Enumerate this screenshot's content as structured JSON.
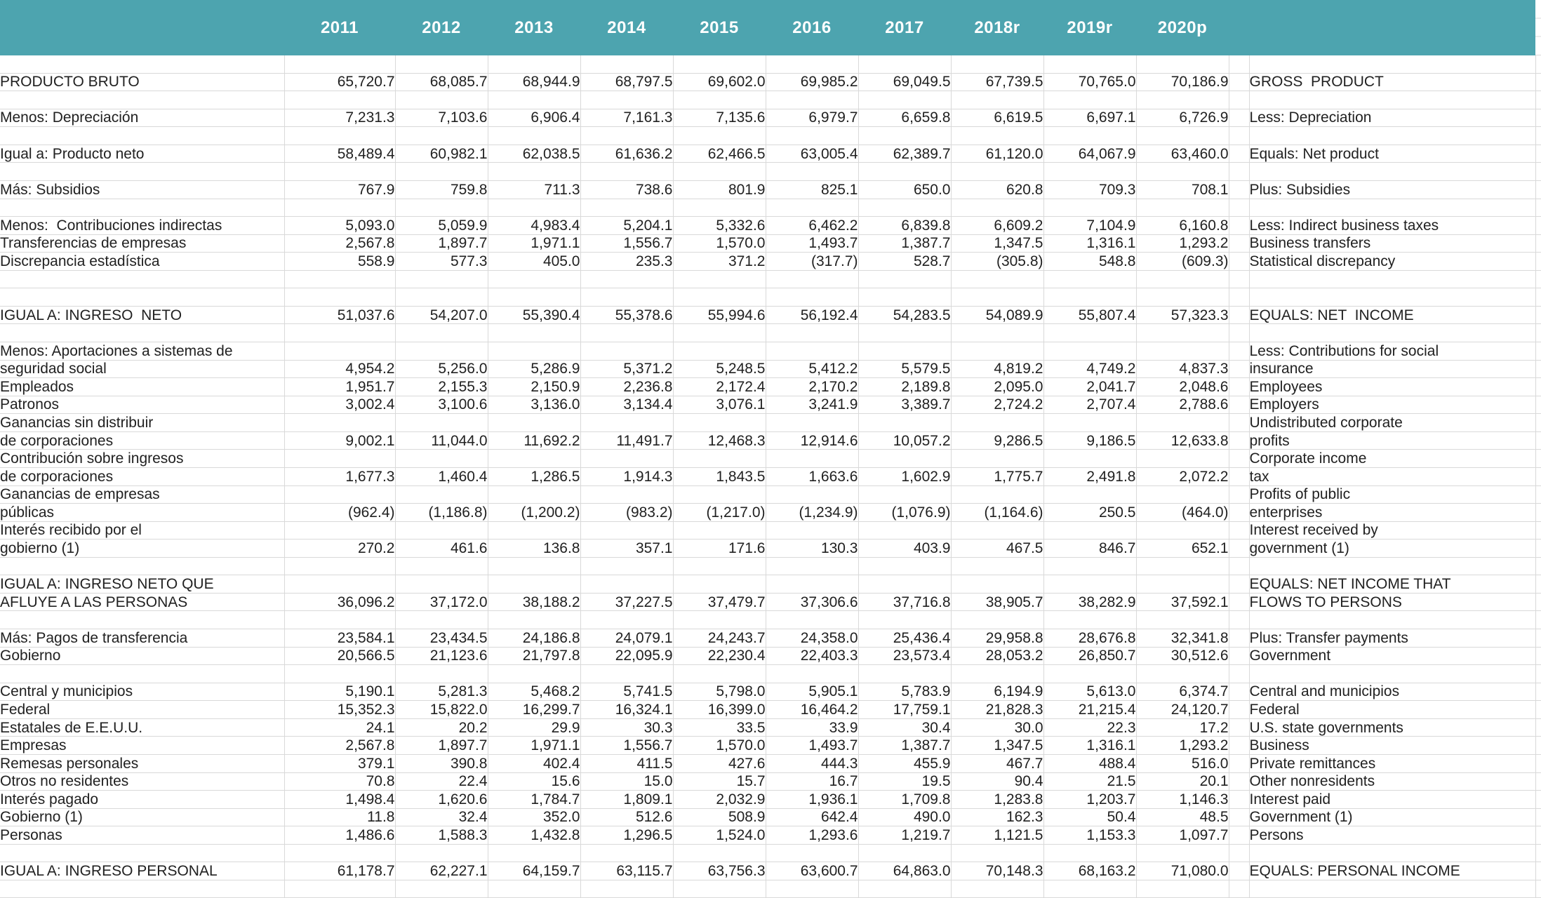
{
  "colors": {
    "header_bg": "#4DA4AF",
    "grid_line": "#D9D9D9",
    "text": "#212121",
    "header_text": "#FFFFFF"
  },
  "header": {
    "years": [
      "2011",
      "2012",
      "2013",
      "2014",
      "2015",
      "2016",
      "2017",
      "2018r",
      "2019r",
      "2020p"
    ]
  },
  "table": {
    "rows": [
      {
        "spacer": true
      },
      {
        "es": "PRODUCTO BRUTO",
        "es_i": 0,
        "en": "GROSS  PRODUCT",
        "en_i": 0,
        "v": [
          "65,720.7",
          "68,085.7",
          "68,944.9",
          "68,797.5",
          "69,602.0",
          "69,985.2",
          "69,049.5",
          "67,739.5",
          "70,765.0",
          "70,186.9"
        ]
      },
      {
        "spacer": true
      },
      {
        "es": "Menos: Depreciación",
        "es_i": 0,
        "en": "Less: Depreciation",
        "en_i": 0,
        "v": [
          "7,231.3",
          "7,103.6",
          "6,906.4",
          "7,161.3",
          "7,135.6",
          "6,979.7",
          "6,659.8",
          "6,619.5",
          "6,697.1",
          "6,726.9"
        ]
      },
      {
        "spacer": true
      },
      {
        "es": "Igual a: Producto neto",
        "es_i": 0,
        "en": "Equals: Net product",
        "en_i": 0,
        "v": [
          "58,489.4",
          "60,982.1",
          "62,038.5",
          "61,636.2",
          "62,466.5",
          "63,005.4",
          "62,389.7",
          "61,120.0",
          "64,067.9",
          "63,460.0"
        ]
      },
      {
        "spacer": true
      },
      {
        "es": "Más: Subsidios",
        "es_i": 0,
        "en": "Plus: Subsidies",
        "en_i": 0,
        "v": [
          "767.9",
          "759.8",
          "711.3",
          "738.6",
          "801.9",
          "825.1",
          "650.0",
          "620.8",
          "709.3",
          "708.1"
        ]
      },
      {
        "spacer": true
      },
      {
        "es": "Menos:  Contribuciones indirectas",
        "es_i": 0,
        "en": "Less: Indirect business taxes",
        "en_i": 0,
        "v": [
          "5,093.0",
          "5,059.9",
          "4,983.4",
          "5,204.1",
          "5,332.6",
          "6,462.2",
          "6,839.8",
          "6,609.2",
          "7,104.9",
          "6,160.8"
        ]
      },
      {
        "es": "Transferencias de empresas",
        "es_i": 3,
        "en": "Business transfers",
        "en_i": 2,
        "v": [
          "2,567.8",
          "1,897.7",
          "1,971.1",
          "1,556.7",
          "1,570.0",
          "1,493.7",
          "1,387.7",
          "1,347.5",
          "1,316.1",
          "1,293.2"
        ]
      },
      {
        "es": "Discrepancia estadística",
        "es_i": 3,
        "en": "Statistical discrepancy",
        "en_i": 2,
        "v": [
          "558.9",
          "577.3",
          "405.0",
          "235.3",
          "371.2",
          "(317.7)",
          "528.7",
          "(305.8)",
          "548.8",
          "(609.3)"
        ]
      },
      {
        "spacer": true
      },
      {
        "spacer": true
      },
      {
        "es": "IGUAL A: INGRESO  NETO",
        "es_i": 0,
        "en": "EQUALS: NET  INCOME",
        "en_i": 0,
        "v": [
          "51,037.6",
          "54,207.0",
          "55,390.4",
          "55,378.6",
          "55,994.6",
          "56,192.4",
          "54,283.5",
          "54,089.9",
          "55,807.4",
          "57,323.3"
        ]
      },
      {
        "spacer": true
      },
      {
        "es": "Menos: Aportaciones a sistemas de",
        "es_i": 0,
        "en": "Less: Contributions for social",
        "en_i": 0
      },
      {
        "es": "seguridad social",
        "es_i": 4,
        "en": "insurance",
        "en_i": 3,
        "v": [
          "4,954.2",
          "5,256.0",
          "5,286.9",
          "5,371.2",
          "5,248.5",
          "5,412.2",
          "5,579.5",
          "4,819.2",
          "4,749.2",
          "4,837.3"
        ]
      },
      {
        "es": "Empleados",
        "es_i": 5,
        "en": "Employees",
        "en_i": 5,
        "v": [
          "1,951.7",
          "2,155.3",
          "2,150.9",
          "2,236.8",
          "2,172.4",
          "2,170.2",
          "2,189.8",
          "2,095.0",
          "2,041.7",
          "2,048.6"
        ]
      },
      {
        "es": "Patronos",
        "es_i": 5,
        "en": "Employers",
        "en_i": 5,
        "v": [
          "3,002.4",
          "3,100.6",
          "3,136.0",
          "3,134.4",
          "3,076.1",
          "3,241.9",
          "3,389.7",
          "2,724.2",
          "2,707.4",
          "2,788.6"
        ]
      },
      {
        "es": "Ganancias sin distribuir",
        "es_i": 3,
        "en": "Undistributed corporate",
        "en_i": 2
      },
      {
        "es": "de corporaciones",
        "es_i": 4,
        "en": "profits",
        "en_i": 3,
        "v": [
          "9,002.1",
          "11,044.0",
          "11,692.2",
          "11,491.7",
          "12,468.3",
          "12,914.6",
          "10,057.2",
          "9,286.5",
          "9,186.5",
          "12,633.8"
        ]
      },
      {
        "es": "Contribución sobre ingresos",
        "es_i": 3,
        "en": "Corporate income",
        "en_i": 2
      },
      {
        "es": "de corporaciones",
        "es_i": 4,
        "en": "tax",
        "en_i": 3,
        "v": [
          "1,677.3",
          "1,460.4",
          "1,286.5",
          "1,914.3",
          "1,843.5",
          "1,663.6",
          "1,602.9",
          "1,775.7",
          "2,491.8",
          "2,072.2"
        ]
      },
      {
        "es": "Ganancias de empresas",
        "es_i": 3,
        "en": "Profits of public",
        "en_i": 2
      },
      {
        "es": "públicas",
        "es_i": 4,
        "en": "enterprises",
        "en_i": 3,
        "v": [
          "(962.4)",
          "(1,186.8)",
          "(1,200.2)",
          "(983.2)",
          "(1,217.0)",
          "(1,234.9)",
          "(1,076.9)",
          "(1,164.6)",
          "250.5",
          "(464.0)"
        ]
      },
      {
        "es": "Interés recibido por el",
        "es_i": 3,
        "en": "Interest received by",
        "en_i": 2
      },
      {
        "es": "gobierno (1)",
        "es_i": 5,
        "en": "government (1)",
        "en_i": 3,
        "v": [
          "270.2",
          "461.6",
          "136.8",
          "357.1",
          "171.6",
          "130.3",
          "403.9",
          "467.5",
          "846.7",
          "652.1"
        ]
      },
      {
        "spacer": true
      },
      {
        "es": "IGUAL A: INGRESO NETO QUE",
        "es_i": 0,
        "en": "EQUALS: NET INCOME THAT",
        "en_i": 0
      },
      {
        "es": "AFLUYE A LAS PERSONAS",
        "es_i": 1,
        "en": "FLOWS TO PERSONS",
        "en_i": 1,
        "v": [
          "36,096.2",
          "37,172.0",
          "38,188.2",
          "37,227.5",
          "37,479.7",
          "37,306.6",
          "37,716.8",
          "38,905.7",
          "38,282.9",
          "37,592.1"
        ]
      },
      {
        "spacer": true
      },
      {
        "es": "Más: Pagos de transferencia",
        "es_i": 0,
        "en": "Plus: Transfer payments",
        "en_i": 0,
        "v": [
          "23,584.1",
          "23,434.5",
          "24,186.8",
          "24,079.1",
          "24,243.7",
          "24,358.0",
          "25,436.4",
          "29,958.8",
          "28,676.8",
          "32,341.8"
        ]
      },
      {
        "es": "Gobierno",
        "es_i": 3,
        "en": "Government",
        "en_i": 3,
        "v": [
          "20,566.5",
          "21,123.6",
          "21,797.8",
          "22,095.9",
          "22,230.4",
          "22,403.3",
          "23,573.4",
          "28,053.2",
          "26,850.7",
          "30,512.6"
        ]
      },
      {
        "spacer": true
      },
      {
        "es": "Central y municipios",
        "es_i": 6,
        "en": "Central and municipios",
        "en_i": 5,
        "v": [
          "5,190.1",
          "5,281.3",
          "5,468.2",
          "5,741.5",
          "5,798.0",
          "5,905.1",
          "5,783.9",
          "6,194.9",
          "5,613.0",
          "6,374.7"
        ]
      },
      {
        "es": "Federal",
        "es_i": 6,
        "en": "Federal",
        "en_i": 5,
        "v": [
          "15,352.3",
          "15,822.0",
          "16,299.7",
          "16,324.1",
          "16,399.0",
          "16,464.2",
          "17,759.1",
          "21,828.3",
          "21,215.4",
          "24,120.7"
        ]
      },
      {
        "es": "Estatales de E.E.U.U.",
        "es_i": 6,
        "en": "U.S. state governments",
        "en_i": 5,
        "v": [
          "24.1",
          "20.2",
          "29.9",
          "30.3",
          "33.5",
          "33.9",
          "30.4",
          "30.0",
          "22.3",
          "17.2"
        ]
      },
      {
        "es": "Empresas",
        "es_i": 3,
        "en": "Business",
        "en_i": 3,
        "v": [
          "2,567.8",
          "1,897.7",
          "1,971.1",
          "1,556.7",
          "1,570.0",
          "1,493.7",
          "1,387.7",
          "1,347.5",
          "1,316.1",
          "1,293.2"
        ]
      },
      {
        "es": "Remesas personales",
        "es_i": 3,
        "en": "Private remittances",
        "en_i": 3,
        "v": [
          "379.1",
          "390.8",
          "402.4",
          "411.5",
          "427.6",
          "444.3",
          "455.9",
          "467.7",
          "488.4",
          "516.0"
        ]
      },
      {
        "es": "Otros no residentes",
        "es_i": 3,
        "en": "Other nonresidents",
        "en_i": 3,
        "v": [
          "70.8",
          "22.4",
          "15.6",
          "15.0",
          "15.7",
          "16.7",
          "19.5",
          "90.4",
          "21.5",
          "20.1"
        ]
      },
      {
        "es": "Interés pagado",
        "es_i": 2,
        "en": "Interest paid",
        "en_i": 2,
        "v": [
          "1,498.4",
          "1,620.6",
          "1,784.7",
          "1,809.1",
          "2,032.9",
          "1,936.1",
          "1,709.8",
          "1,283.8",
          "1,203.7",
          "1,146.3"
        ]
      },
      {
        "es": "Gobierno (1)",
        "es_i": 3,
        "en": "Government (1)",
        "en_i": 3,
        "v": [
          "11.8",
          "32.4",
          "352.0",
          "512.6",
          "508.9",
          "642.4",
          "490.0",
          "162.3",
          "50.4",
          "48.5"
        ]
      },
      {
        "es": "Personas",
        "es_i": 3,
        "en": "Persons",
        "en_i": 3,
        "v": [
          "1,486.6",
          "1,588.3",
          "1,432.8",
          "1,296.5",
          "1,524.0",
          "1,293.6",
          "1,219.7",
          "1,121.5",
          "1,153.3",
          "1,097.7"
        ]
      },
      {
        "spacer": true
      },
      {
        "es": "IGUAL A: INGRESO PERSONAL",
        "es_i": 0,
        "en": "EQUALS: PERSONAL INCOME",
        "en_i": 0,
        "v": [
          "61,178.7",
          "62,227.1",
          "64,159.7",
          "63,115.7",
          "63,756.3",
          "63,600.7",
          "64,863.0",
          "70,148.3",
          "68,163.2",
          "71,080.0"
        ]
      },
      {
        "spacer": true
      }
    ]
  }
}
